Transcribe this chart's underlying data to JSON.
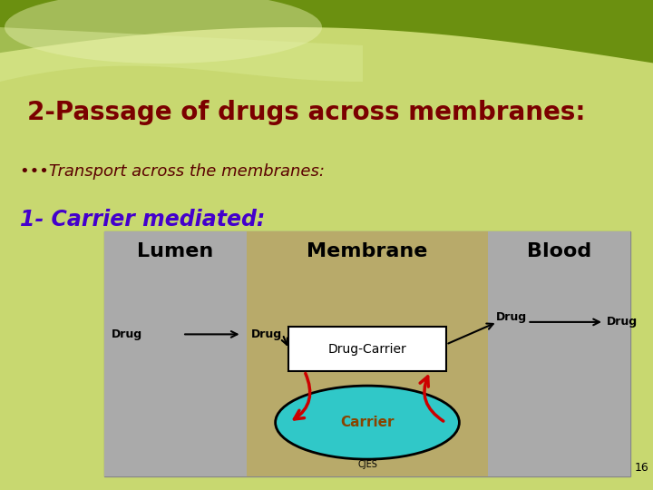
{
  "title": "2-Passage of drugs across membranes:",
  "title_color": "#7B0000",
  "title_fontsize": 20,
  "bullet_text": "•••Transport across the membranes:",
  "bullet_color": "#5B0000",
  "bullet_fontsize": 13,
  "subhead_text": "1- Carrier mediated:",
  "subhead_color": "#4400CC",
  "subhead_fontsize": 17,
  "page_number": "16",
  "diagram": {
    "lumen_bg": "#AAAAAA",
    "membrane_bg": "#B8AA6A",
    "blood_bg": "#AAAAAA",
    "lumen_label": "Lumen",
    "membrane_label": "Membrane",
    "blood_label": "Blood",
    "drug_carrier_label": "Drug-Carrier",
    "carrier_label": "Carrier",
    "carrier_color": "#30C8C8",
    "arrow_color": "#CC0000"
  }
}
